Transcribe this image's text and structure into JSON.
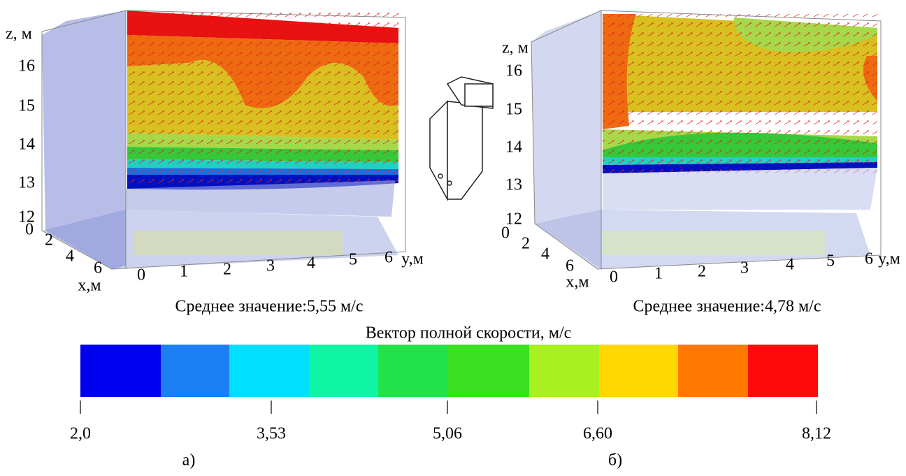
{
  "panels": [
    {
      "z_axis_label": "z, м",
      "z_ticks": [
        "16",
        "15",
        "14",
        "13",
        "12"
      ],
      "x_axis_label": "x,м",
      "x_ticks": [
        "0",
        "2",
        "4",
        "6"
      ],
      "y_axis_label": "y,м",
      "y_ticks": [
        "0",
        "1",
        "2",
        "3",
        "4",
        "5",
        "6"
      ],
      "mean": "Среднее значение:5,55 м/с",
      "caption": "а)"
    },
    {
      "z_axis_label": "z, м",
      "z_ticks": [
        "16",
        "15",
        "14",
        "13",
        "12"
      ],
      "x_axis_label": "x,м",
      "x_ticks": [
        "0",
        "2",
        "4",
        "6"
      ],
      "y_axis_label": "y,м",
      "y_ticks": [
        "0",
        "1",
        "2",
        "3",
        "4",
        "5",
        "6"
      ],
      "mean": "Среднее значение:4,78 м/с",
      "caption": "б)"
    }
  ],
  "colorbar": {
    "title": "Вектор полной скорости, м/с",
    "colors": [
      "#0000f0",
      "#1a80f4",
      "#00e0ff",
      "#10f5a5",
      "#22e24a",
      "#38e020",
      "#a8f020",
      "#ffd800",
      "#ff7800",
      "#ff0a0a"
    ],
    "tick_labels": [
      "2,0",
      "3,53",
      "5,06",
      "6,60",
      "8,12"
    ]
  }
}
